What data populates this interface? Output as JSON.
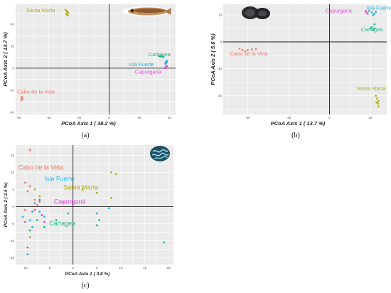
{
  "chart_data": [
    {
      "type": "scatter",
      "caption": "(a)",
      "xlabel": "PCoA Axis 1 ( 38.2 %)",
      "ylabel": "PCoA Axis 2 ( 13.7 %)",
      "xlim": [
        -62,
        44
      ],
      "ylim": [
        -42,
        58
      ],
      "xticks": [
        {
          "v": -60,
          "label": "-60"
        },
        {
          "v": -40,
          "label": "-40"
        },
        {
          "v": -20,
          "label": "-20"
        },
        {
          "v": 0,
          "label": "0"
        },
        {
          "v": 20,
          "label": "20"
        },
        {
          "v": 40,
          "label": "40"
        }
      ],
      "yticks": [
        {
          "v": -40,
          "label": "-40"
        },
        {
          "v": -20,
          "label": "-20"
        },
        {
          "v": 0,
          "label": "0"
        },
        {
          "v": 20,
          "label": "20"
        },
        {
          "v": 40,
          "label": "40"
        }
      ],
      "series": [
        {
          "name": "Santa Marta",
          "color": "#b5ad1e",
          "label_at": [
            -55,
            51
          ],
          "points": [
            [
              -29,
              53
            ],
            [
              -28,
              51
            ],
            [
              -27,
              50
            ],
            [
              -28.5,
              49
            ],
            [
              -27.5,
              48
            ],
            [
              -28,
              52
            ]
          ]
        },
        {
          "name": "Cartagea",
          "color": "#1fb88a",
          "label_at": [
            26,
            11
          ],
          "points": [
            [
              33,
              11
            ],
            [
              34,
              10.5
            ],
            [
              35,
              10.8
            ],
            [
              36,
              10.2
            ],
            [
              34.5,
              11.2
            ]
          ]
        },
        {
          "name": "Isla Fuerte",
          "color": "#28b4e8",
          "label_at": [
            13,
            2
          ],
          "points": [
            [
              37.5,
              6
            ],
            [
              38,
              5
            ],
            [
              37.2,
              4
            ],
            [
              38.3,
              6.5
            ]
          ]
        },
        {
          "name": "Capurganá",
          "color": "#e04fd7",
          "label_at": [
            17,
            -5
          ],
          "points": [
            [
              37.5,
              1
            ],
            [
              38,
              0.5
            ],
            [
              37.8,
              1.5
            ],
            [
              38.2,
              2
            ],
            [
              37,
              0
            ]
          ]
        },
        {
          "name": "Cabo de la Vela",
          "color": "#f07a6a",
          "label_at": [
            -61,
            -23
          ],
          "points": [
            [
              -58,
              -26
            ],
            [
              -57.5,
              -28
            ],
            [
              -58.3,
              -29
            ],
            [
              -57.8,
              -27
            ]
          ]
        }
      ]
    },
    {
      "type": "scatter",
      "caption": "(b)",
      "xlabel": "PCoA Axis 1 ( 13.7 %)",
      "ylabel": "PCoA Axis 2 ( 5.6 %)",
      "xlim": [
        -78,
        42
      ],
      "ylim": [
        -27,
        14
      ],
      "xticks": [
        {
          "v": -60,
          "label": "-60"
        },
        {
          "v": -30,
          "label": "-30"
        },
        {
          "v": 0,
          "label": "0"
        },
        {
          "v": 30,
          "label": "30"
        }
      ],
      "yticks": [
        {
          "v": -20,
          "label": "-20"
        },
        {
          "v": -10,
          "label": "-10"
        },
        {
          "v": 0,
          "label": "0"
        },
        {
          "v": 10,
          "label": "10"
        }
      ],
      "series": [
        {
          "name": "Isla Fuerte",
          "color": "#28b4e8",
          "label_at": [
            27,
            12
          ],
          "points": [
            [
              29,
              11.5
            ],
            [
              31,
              11
            ],
            [
              33,
              10.5
            ],
            [
              34,
              11.2
            ],
            [
              32,
              10
            ]
          ]
        },
        {
          "name": "Capurganá",
          "color": "#e04fd7",
          "label_at": [
            -3,
            11
          ],
          "points": [
            [
              27,
              11
            ],
            [
              28,
              10.5
            ],
            [
              26.5,
              11.5
            ]
          ]
        },
        {
          "name": "Cartagea",
          "color": "#1fb88a",
          "label_at": [
            23,
            4
          ],
          "points": [
            [
              33,
              6.5
            ],
            [
              31,
              5.5
            ],
            [
              30,
              5
            ],
            [
              33,
              5
            ],
            [
              32,
              4.5
            ]
          ]
        },
        {
          "name": "Cabo de la Vela",
          "color": "#f07a6a",
          "label_at": [
            -73,
            -5
          ],
          "points": [
            [
              -66,
              -2.5
            ],
            [
              -64,
              -3
            ],
            [
              -62,
              -3.5
            ],
            [
              -60,
              -3
            ],
            [
              -57,
              -2.8
            ],
            [
              -54,
              -2.6
            ]
          ]
        },
        {
          "name": "Santa Marta",
          "color": "#b5ad1e",
          "label_at": [
            20,
            -18
          ],
          "points": [
            [
              34,
              -20
            ],
            [
              35,
              -21
            ],
            [
              36,
              -22
            ],
            [
              35.5,
              -23
            ],
            [
              34.5,
              -22.5
            ],
            [
              36,
              -24
            ]
          ]
        }
      ]
    },
    {
      "type": "scatter",
      "caption": "(c)",
      "xlabel": "PCoA Axis 1 ( 3.8 %)",
      "ylabel": "PCoA Axis 2 ( 2.5 %)",
      "xlim": [
        -12,
        21
      ],
      "ylim": [
        -17,
        18
      ],
      "xticks": [
        {
          "v": -10,
          "label": "-10"
        },
        {
          "v": -5,
          "label": "-5"
        },
        {
          "v": 0,
          "label": "0"
        },
        {
          "v": 5,
          "label": "5"
        },
        {
          "v": 10,
          "label": "10"
        },
        {
          "v": 15,
          "label": "15"
        },
        {
          "v": 20,
          "label": "20"
        }
      ],
      "yticks": [
        {
          "v": -15,
          "label": "-15"
        },
        {
          "v": -10,
          "label": "-10"
        },
        {
          "v": -5,
          "label": "-5"
        },
        {
          "v": 0,
          "label": "0"
        },
        {
          "v": 5,
          "label": "5"
        },
        {
          "v": 10,
          "label": "10"
        },
        {
          "v": 15,
          "label": "15"
        }
      ],
      "series": [
        {
          "name": "Cabo de la Vela",
          "color": "#f07a6a",
          "label_at": [
            -11.5,
            10.8
          ],
          "points": [
            [
              -9,
              16.5
            ],
            [
              -10,
              7
            ],
            [
              -9.5,
              4.5
            ],
            [
              -8,
              2
            ],
            [
              -10,
              -1
            ],
            [
              -7.5,
              0.5
            ],
            [
              -9,
              6
            ]
          ]
        },
        {
          "name": "Isla Fuerte",
          "color": "#28b4e8",
          "label_at": [
            -6,
            7.5
          ],
          "points": [
            [
              -9,
              -4
            ],
            [
              -8,
              1
            ],
            [
              -10.5,
              -3
            ],
            [
              -7,
              -1.5
            ],
            [
              -6,
              -3
            ],
            [
              -9.5,
              -14
            ],
            [
              -8.5,
              -6
            ],
            [
              5,
              -2
            ],
            [
              7.5,
              -0.5
            ]
          ]
        },
        {
          "name": "Santa Marta",
          "color": "#b5ad1e",
          "label_at": [
            -2,
            5
          ],
          "points": [
            [
              8,
              10
            ],
            [
              9,
              9.5
            ],
            [
              2,
              5
            ],
            [
              5,
              4
            ],
            [
              -8,
              5
            ],
            [
              -7,
              3
            ],
            [
              8,
              2.5
            ],
            [
              -9,
              -9
            ]
          ]
        },
        {
          "name": "Capurganá",
          "color": "#e04fd7",
          "label_at": [
            -4,
            0.8
          ],
          "points": [
            [
              -7,
              1.5
            ],
            [
              -8,
              -1
            ],
            [
              -6.5,
              -2.5
            ],
            [
              -10,
              -4.5
            ],
            [
              -6,
              -4.5
            ],
            [
              -2,
              1.2
            ]
          ]
        },
        {
          "name": "Cartagea",
          "color": "#1fb88a",
          "label_at": [
            -5,
            -5.5
          ],
          "points": [
            [
              -7,
              2
            ],
            [
              -8.5,
              -1.5
            ],
            [
              -9,
              -7
            ],
            [
              -6,
              -6
            ],
            [
              -7.5,
              -4
            ],
            [
              -3.5,
              -4
            ],
            [
              -1,
              -2
            ],
            [
              5.5,
              -4
            ],
            [
              5,
              -5.5
            ],
            [
              19,
              -10.5
            ],
            [
              -9.5,
              -12
            ]
          ]
        }
      ]
    }
  ]
}
